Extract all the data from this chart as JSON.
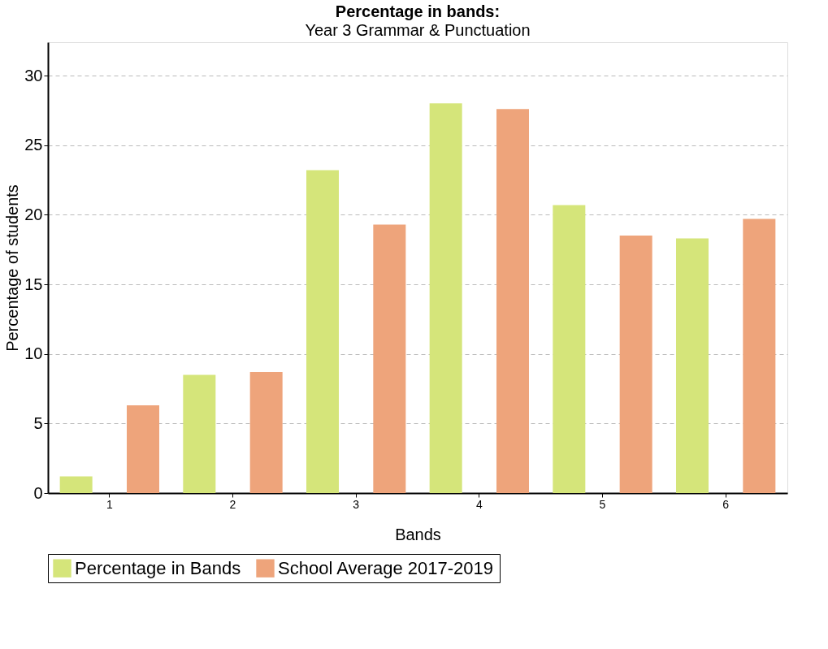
{
  "chart_data": {
    "type": "bar",
    "title": "Percentage in bands:",
    "subtitle": "Year 3 Grammar & Punctuation",
    "xlabel": "Bands",
    "ylabel": "Percentage of students",
    "categories": [
      "1",
      "2",
      "3",
      "4",
      "5",
      "6"
    ],
    "series": [
      {
        "name": "Percentage in Bands",
        "color": "#d5e57a",
        "values": [
          1.2,
          8.5,
          23.2,
          28.0,
          20.7,
          18.3
        ]
      },
      {
        "name": "School Average 2017-2019",
        "color": "#eea47b",
        "values": [
          6.3,
          8.7,
          19.3,
          27.6,
          18.5,
          19.7
        ]
      }
    ],
    "ylim": [
      0,
      32.4
    ],
    "yticks": [
      0,
      5,
      10,
      15,
      20,
      25,
      30
    ],
    "grid": "y",
    "legend": "bottom"
  }
}
